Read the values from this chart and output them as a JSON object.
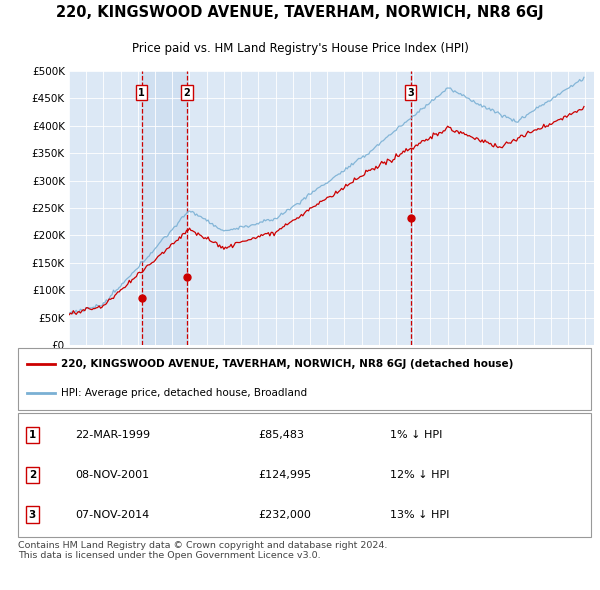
{
  "title": "220, KINGSWOOD AVENUE, TAVERHAM, NORWICH, NR8 6GJ",
  "subtitle": "Price paid vs. HM Land Registry's House Price Index (HPI)",
  "sale_dates_decimal": [
    1999.22,
    2001.84,
    2014.84
  ],
  "sale_prices": [
    85483,
    124995,
    232000
  ],
  "sale_labels": [
    "1",
    "2",
    "3"
  ],
  "sale_label_info": [
    [
      "22-MAR-1999",
      "£85,483",
      "1% ↓ HPI"
    ],
    [
      "08-NOV-2001",
      "£124,995",
      "12% ↓ HPI"
    ],
    [
      "07-NOV-2014",
      "£232,000",
      "13% ↓ HPI"
    ]
  ],
  "legend_line1": "220, KINGSWOOD AVENUE, TAVERHAM, NORWICH, NR8 6GJ (detached house)",
  "legend_line2": "HPI: Average price, detached house, Broadland",
  "footer": "Contains HM Land Registry data © Crown copyright and database right 2024.\nThis data is licensed under the Open Government Licence v3.0.",
  "line_color_red": "#cc0000",
  "line_color_blue": "#7ab0d4",
  "vline_color": "#cc0000",
  "shade_color": "#ddeeff",
  "background_color": "#ffffff",
  "plot_bg_color": "#dce8f5",
  "ylim": [
    0,
    500000
  ],
  "yticks": [
    0,
    50000,
    100000,
    150000,
    200000,
    250000,
    300000,
    350000,
    400000,
    450000,
    500000
  ],
  "x_start_year": 1995,
  "x_end_year": 2025
}
